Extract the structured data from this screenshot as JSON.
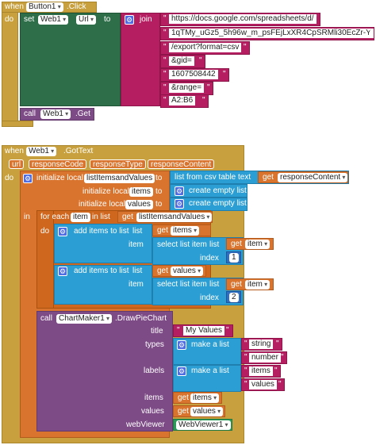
{
  "kw": {
    "when": "when",
    "do": "do",
    "set": "set",
    "to": "to",
    "call": "call",
    "join": "join",
    "initialize_local": "initialize local",
    "in": "in",
    "for_each": "for each",
    "in_list": "in list",
    "get": "get",
    "add_items": "add items to list",
    "list": "list",
    "item": "item",
    "select_item": "select list item",
    "index": "index",
    "list_from_csv": "list from csv table",
    "text": "text",
    "empty_list": "create empty list",
    "make_list": "make a list"
  },
  "event1": {
    "component": "Button1",
    "event": ".Click",
    "set_component": "Web1",
    "set_property": "Url",
    "join_parts": [
      "https://docs.google.com/spreadsheets/d/",
      "1qTMy_uGz5_5h96w_m_psFEjLxXR4CpSRMli30EcZr-Y",
      "/export?format=csv",
      "&gid=",
      "1607508442",
      "&range=",
      "A2:B6"
    ],
    "call_component": "Web1",
    "call_method": ".Get"
  },
  "event2": {
    "component": "Web1",
    "event": ".GotText",
    "params": [
      "url",
      "responseCode",
      "responseType",
      "responseContent"
    ],
    "local1": "listItemsandValues",
    "csv_source": "responseContent",
    "local2": "items",
    "local3": "values",
    "loop_var": "item",
    "loop_list": "listItemsandValues",
    "add1_list": "items",
    "add1_from": "item",
    "add1_index": "1",
    "add2_list": "values",
    "add2_from": "item",
    "add2_index": "2",
    "chart_component": "ChartMaker1",
    "chart_method": ".DrawPieChart",
    "param_labels": [
      "title",
      "types",
      "labels",
      "items",
      "values",
      "webViewer"
    ],
    "title_value": "My Values",
    "types_list": [
      "string",
      "number"
    ],
    "labels_list": [
      "items",
      "values"
    ],
    "items_var": "items",
    "values_var": "values",
    "webviewer": "WebViewer1"
  }
}
